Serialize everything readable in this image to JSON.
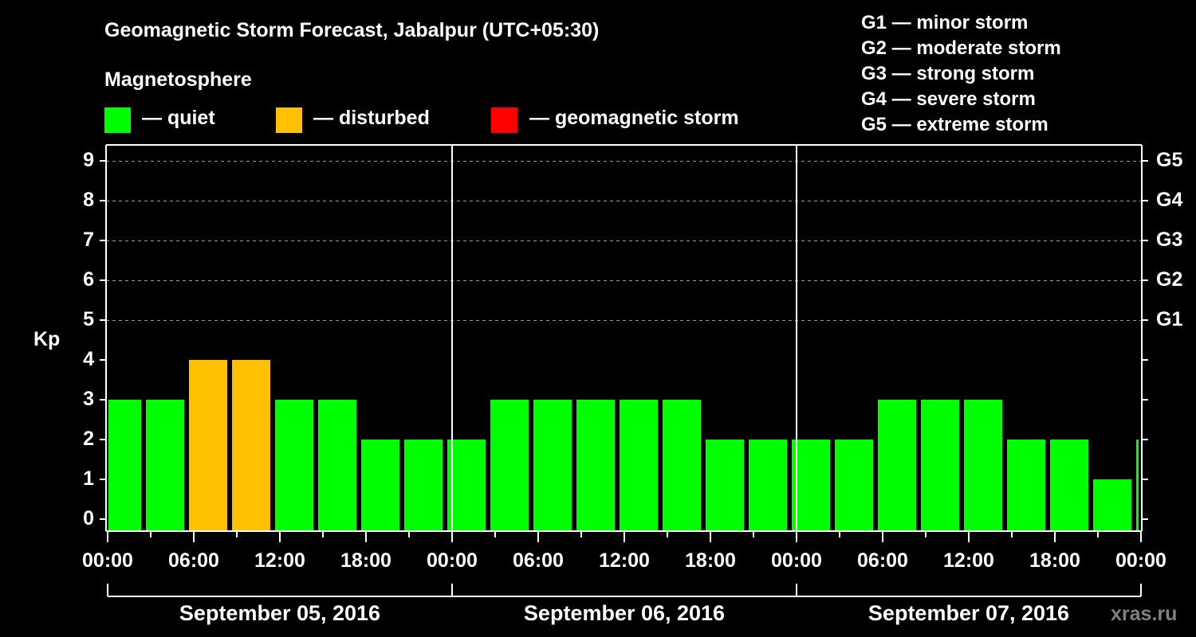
{
  "header": {
    "title": "Geomagnetic Storm Forecast, Jabalpur (UTC+05:30)",
    "subtitle": "Magnetosphere",
    "legend": [
      {
        "label": "— quiet",
        "color": "#00ff00"
      },
      {
        "label": "— disturbed",
        "color": "#ffc000"
      },
      {
        "label": "— geomagnetic storm",
        "color": "#ff0000"
      }
    ],
    "gscale": [
      "G1 — minor storm",
      "G2 — moderate storm",
      "G3 — strong storm",
      "G4 — severe storm",
      "G5 — extreme storm"
    ]
  },
  "watermark": "xras.ru",
  "chart_data": {
    "type": "bar",
    "title": "Geomagnetic Storm Forecast, Jabalpur (UTC+05:30)",
    "ylabel": "Kp",
    "xlabel": "",
    "ylim": [
      0,
      9
    ],
    "yticks": [
      "0",
      "1",
      "2",
      "3",
      "4",
      "5",
      "6",
      "7",
      "8",
      "9"
    ],
    "right_ticks": [
      {
        "kp": 5,
        "label": "G1"
      },
      {
        "kp": 6,
        "label": "G2"
      },
      {
        "kp": 7,
        "label": "G3"
      },
      {
        "kp": 8,
        "label": "G4"
      },
      {
        "kp": 9,
        "label": "G5"
      }
    ],
    "grid": "dashed horizontal at Kp 5-9",
    "xtick_labels": [
      "00:00",
      "06:00",
      "12:00",
      "18:00",
      "00:00",
      "06:00",
      "12:00",
      "18:00",
      "00:00",
      "06:00",
      "12:00",
      "18:00",
      "00:00"
    ],
    "dates": [
      "September 05, 2016",
      "September 06, 2016",
      "September 07, 2016"
    ],
    "bars": [
      {
        "start": "Sep 05 00:00",
        "end": "Sep 05 02:30",
        "kp": 3,
        "status": "quiet"
      },
      {
        "start": "Sep 05 02:30",
        "end": "Sep 05 05:30",
        "kp": 3,
        "status": "quiet"
      },
      {
        "start": "Sep 05 05:30",
        "end": "Sep 05 08:30",
        "kp": 4,
        "status": "disturbed"
      },
      {
        "start": "Sep 05 08:30",
        "end": "Sep 05 11:30",
        "kp": 4,
        "status": "disturbed"
      },
      {
        "start": "Sep 05 11:30",
        "end": "Sep 05 14:30",
        "kp": 3,
        "status": "quiet"
      },
      {
        "start": "Sep 05 14:30",
        "end": "Sep 05 17:30",
        "kp": 3,
        "status": "quiet"
      },
      {
        "start": "Sep 05 17:30",
        "end": "Sep 05 20:30",
        "kp": 2,
        "status": "quiet"
      },
      {
        "start": "Sep 05 20:30",
        "end": "Sep 05 23:30",
        "kp": 2,
        "status": "quiet"
      },
      {
        "start": "Sep 05 23:30",
        "end": "Sep 06 02:30",
        "kp": 2,
        "status": "quiet"
      },
      {
        "start": "Sep 06 02:30",
        "end": "Sep 06 05:30",
        "kp": 3,
        "status": "quiet"
      },
      {
        "start": "Sep 06 05:30",
        "end": "Sep 06 08:30",
        "kp": 3,
        "status": "quiet"
      },
      {
        "start": "Sep 06 08:30",
        "end": "Sep 06 11:30",
        "kp": 3,
        "status": "quiet"
      },
      {
        "start": "Sep 06 11:30",
        "end": "Sep 06 14:30",
        "kp": 3,
        "status": "quiet"
      },
      {
        "start": "Sep 06 14:30",
        "end": "Sep 06 17:30",
        "kp": 3,
        "status": "quiet"
      },
      {
        "start": "Sep 06 17:30",
        "end": "Sep 06 20:30",
        "kp": 2,
        "status": "quiet"
      },
      {
        "start": "Sep 06 20:30",
        "end": "Sep 06 23:30",
        "kp": 2,
        "status": "quiet"
      },
      {
        "start": "Sep 06 23:30",
        "end": "Sep 07 02:30",
        "kp": 2,
        "status": "quiet"
      },
      {
        "start": "Sep 07 02:30",
        "end": "Sep 07 05:30",
        "kp": 2,
        "status": "quiet"
      },
      {
        "start": "Sep 07 05:30",
        "end": "Sep 07 08:30",
        "kp": 3,
        "status": "quiet"
      },
      {
        "start": "Sep 07 08:30",
        "end": "Sep 07 11:30",
        "kp": 3,
        "status": "quiet"
      },
      {
        "start": "Sep 07 11:30",
        "end": "Sep 07 14:30",
        "kp": 3,
        "status": "quiet"
      },
      {
        "start": "Sep 07 14:30",
        "end": "Sep 07 17:30",
        "kp": 2,
        "status": "quiet"
      },
      {
        "start": "Sep 07 17:30",
        "end": "Sep 07 20:30",
        "kp": 2,
        "status": "quiet"
      },
      {
        "start": "Sep 07 20:30",
        "end": "Sep 07 23:30",
        "kp": 1,
        "status": "quiet"
      },
      {
        "start": "Sep 07 23:30",
        "end": "Sep 08 00:00",
        "kp": 2,
        "status": "quiet"
      }
    ],
    "colors": {
      "quiet": "#00ff00",
      "disturbed": "#ffc000",
      "storm": "#ff0000"
    }
  }
}
